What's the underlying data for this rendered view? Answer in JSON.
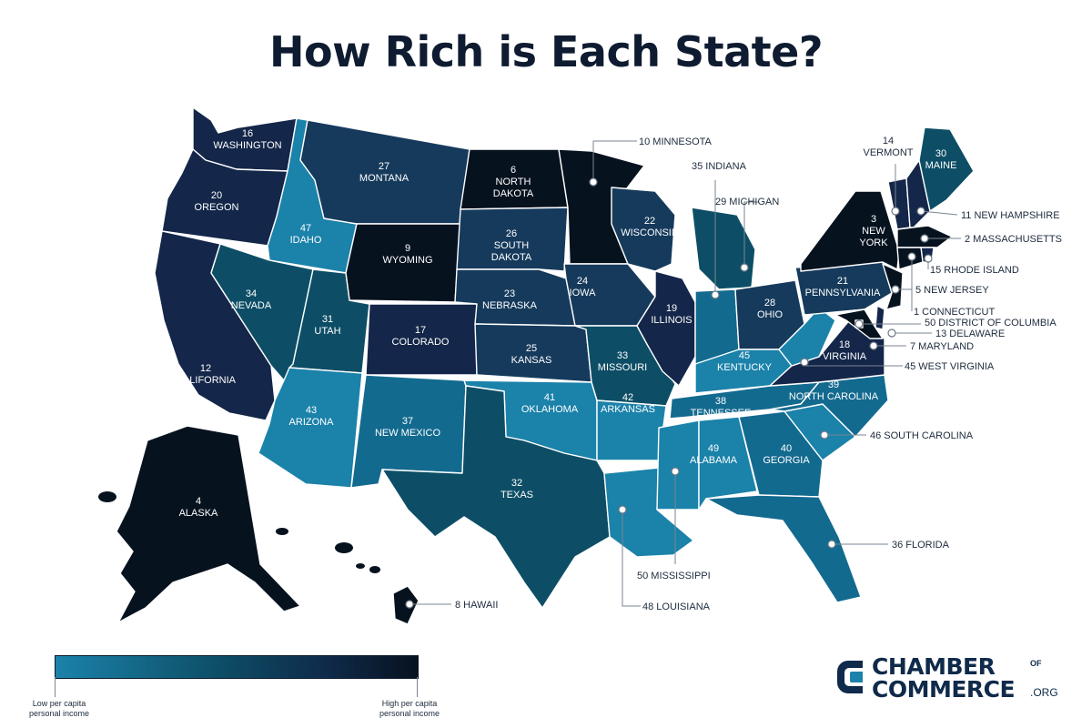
{
  "title": "How Rich is Each State?",
  "legend": {
    "low_label": "Low per capita personal income",
    "high_label": "High per capita personal income"
  },
  "logo": {
    "line1": "CHAMBER",
    "of": "OF",
    "line2": "COMMERCE",
    "suffix": ".ORG"
  },
  "colors": {
    "low": "#1b82aa",
    "mid_low": "#136a8f",
    "mid": "#0d4e66",
    "mid_high": "#163a5c",
    "high": "#142649",
    "top": "#07121f"
  },
  "states": [
    {
      "id": "WA",
      "name": "WASHINGTON",
      "rank": 16
    },
    {
      "id": "OR",
      "name": "OREGON",
      "rank": 20
    },
    {
      "id": "CA",
      "name": "CALIFORNIA",
      "rank": 12
    },
    {
      "id": "ID",
      "name": "IDAHO",
      "rank": 47
    },
    {
      "id": "NV",
      "name": "NEVADA",
      "rank": 34
    },
    {
      "id": "MT",
      "name": "MONTANA",
      "rank": 27
    },
    {
      "id": "WY",
      "name": "WYOMING",
      "rank": 9
    },
    {
      "id": "UT",
      "name": "UTAH",
      "rank": 31
    },
    {
      "id": "AZ",
      "name": "ARIZONA",
      "rank": 43
    },
    {
      "id": "CO",
      "name": "COLORADO",
      "rank": 17
    },
    {
      "id": "NM",
      "name": "NEW MEXICO",
      "rank": 37
    },
    {
      "id": "ND",
      "name": "NORTH DAKOTA",
      "rank": 6
    },
    {
      "id": "SD",
      "name": "SOUTH DAKOTA",
      "rank": 26
    },
    {
      "id": "NE",
      "name": "NEBRASKA",
      "rank": 23
    },
    {
      "id": "KS",
      "name": "KANSAS",
      "rank": 25
    },
    {
      "id": "OK",
      "name": "OKLAHOMA",
      "rank": 41
    },
    {
      "id": "TX",
      "name": "TEXAS",
      "rank": 32
    },
    {
      "id": "MN",
      "name": "MINNESOTA",
      "rank": 10
    },
    {
      "id": "IA",
      "name": "IOWA",
      "rank": 24
    },
    {
      "id": "MO",
      "name": "MISSOURI",
      "rank": 33
    },
    {
      "id": "AR",
      "name": "ARKANSAS",
      "rank": 42
    },
    {
      "id": "LA",
      "name": "LOUISIANA",
      "rank": 48
    },
    {
      "id": "WI",
      "name": "WISCONSIN",
      "rank": 22
    },
    {
      "id": "IL",
      "name": "ILLINOIS",
      "rank": 19
    },
    {
      "id": "MI",
      "name": "MICHIGAN",
      "rank": 29
    },
    {
      "id": "IN",
      "name": "INDIANA",
      "rank": 35
    },
    {
      "id": "OH",
      "name": "OHIO",
      "rank": 28
    },
    {
      "id": "KY",
      "name": "KENTUCKY",
      "rank": 45
    },
    {
      "id": "TN",
      "name": "TENNESSEE",
      "rank": 38
    },
    {
      "id": "MS",
      "name": "MISSISSIPPI",
      "rank": 50
    },
    {
      "id": "AL",
      "name": "ALABAMA",
      "rank": 49
    },
    {
      "id": "GA",
      "name": "GEORGIA",
      "rank": 40
    },
    {
      "id": "FL",
      "name": "FLORIDA",
      "rank": 36
    },
    {
      "id": "SC",
      "name": "SOUTH CAROLINA",
      "rank": 46
    },
    {
      "id": "NC",
      "name": "NORTH CAROLINA",
      "rank": 39
    },
    {
      "id": "VA",
      "name": "VIRGINIA",
      "rank": 18
    },
    {
      "id": "WV",
      "name": "WEST VIRGINIA",
      "rank": 45
    },
    {
      "id": "PA",
      "name": "PENNSYLVANIA",
      "rank": 21
    },
    {
      "id": "NY",
      "name": "NEW YORK",
      "rank": 3
    },
    {
      "id": "VT",
      "name": "VERMONT",
      "rank": 14
    },
    {
      "id": "NH",
      "name": "NEW HAMPSHIRE",
      "rank": 11
    },
    {
      "id": "ME",
      "name": "MAINE",
      "rank": 30
    },
    {
      "id": "MA",
      "name": "MASSACHUSETTS",
      "rank": 2
    },
    {
      "id": "RI",
      "name": "RHODE ISLAND",
      "rank": 15
    },
    {
      "id": "CT",
      "name": "CONNECTICUT",
      "rank": 1
    },
    {
      "id": "NJ",
      "name": "NEW JERSEY",
      "rank": 5
    },
    {
      "id": "DE",
      "name": "DELAWARE",
      "rank": 13
    },
    {
      "id": "MD",
      "name": "MARYLAND",
      "rank": 7
    },
    {
      "id": "DC",
      "name": "DISTRICT OF COLUMBIA",
      "rank": 50
    },
    {
      "id": "AK",
      "name": "ALASKA",
      "rank": 4
    },
    {
      "id": "HI",
      "name": "HAWAII",
      "rank": 8
    }
  ]
}
